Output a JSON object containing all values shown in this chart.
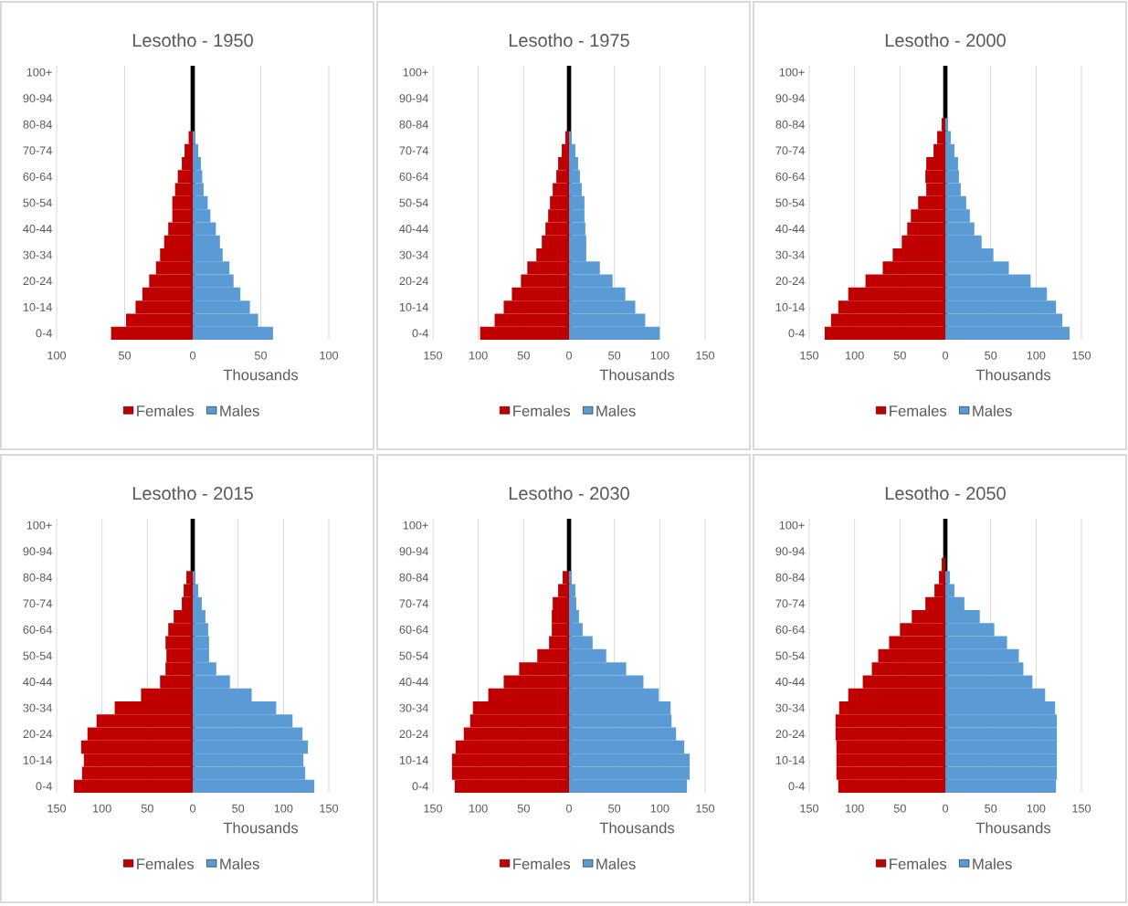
{
  "chart_data": [
    {
      "type": "bar",
      "orientation": "horizontal",
      "stacked": true,
      "title": "Lesotho - 1950",
      "xlabel": "Thousands",
      "grid": "x",
      "legend": "bottom",
      "categories": [
        "100+",
        null,
        "90-94",
        null,
        "80-84",
        null,
        "70-74",
        null,
        "60-64",
        null,
        "50-54",
        null,
        "40-44",
        null,
        "30-34",
        null,
        "20-24",
        null,
        "10-14",
        null,
        "0-4"
      ],
      "xlim": [
        -100,
        100
      ],
      "xticks": [
        {
          "value": -100,
          "label": "100"
        },
        {
          "value": -50,
          "label": "50"
        },
        0,
        50,
        100
      ],
      "ref_lines": [
        {
          "axis": "x",
          "value": 0,
          "color": "#000000"
        }
      ],
      "series": [
        {
          "name": "Females",
          "color": "#c00000",
          "values": [
            null,
            null,
            null,
            null,
            null,
            -3,
            -6,
            -8,
            -11,
            -13,
            -15,
            -15,
            -18,
            -21,
            -24,
            -27,
            -32,
            -37,
            -42,
            -49,
            -60
          ]
        },
        {
          "name": "Males",
          "color": "#5b9bd5",
          "values": [
            null,
            null,
            null,
            null,
            null,
            2,
            4,
            6,
            7,
            8,
            11,
            13,
            17,
            20,
            22,
            27,
            30,
            35,
            42,
            48,
            59
          ]
        }
      ]
    },
    {
      "type": "bar",
      "orientation": "horizontal",
      "stacked": true,
      "title": "Lesotho - 1975",
      "xlabel": "Thousands",
      "grid": "x",
      "legend": "bottom",
      "categories": [
        "100+",
        null,
        "90-94",
        null,
        "80-84",
        null,
        "70-74",
        null,
        "60-64",
        null,
        "50-54",
        null,
        "40-44",
        null,
        "30-34",
        null,
        "20-24",
        null,
        "10-14",
        null,
        "0-4"
      ],
      "xlim": [
        -150,
        150
      ],
      "xticks": [
        {
          "value": -150,
          "label": "150"
        },
        {
          "value": -100,
          "label": "100"
        },
        {
          "value": -50,
          "label": "50"
        },
        0,
        50,
        100,
        150
      ],
      "ref_lines": [
        {
          "axis": "x",
          "value": 0,
          "color": "#000000"
        }
      ],
      "series": [
        {
          "name": "Females",
          "color": "#c00000",
          "values": [
            null,
            null,
            null,
            null,
            null,
            -4,
            -8,
            -12,
            -14,
            -18,
            -21,
            -23,
            -26,
            -30,
            -36,
            -46,
            -53,
            -63,
            -72,
            -82,
            -98
          ]
        },
        {
          "name": "Males",
          "color": "#5b9bd5",
          "values": [
            null,
            null,
            null,
            null,
            null,
            3,
            7,
            10,
            12,
            14,
            17,
            17,
            18,
            19,
            19,
            34,
            48,
            62,
            73,
            84,
            100
          ]
        }
      ]
    },
    {
      "type": "bar",
      "orientation": "horizontal",
      "stacked": true,
      "title": "Lesotho - 2000",
      "xlabel": "Thousands",
      "grid": "x",
      "legend": "bottom",
      "categories": [
        "100+",
        null,
        "90-94",
        null,
        "80-84",
        null,
        "70-74",
        null,
        "60-64",
        null,
        "50-54",
        null,
        "40-44",
        null,
        "30-34",
        null,
        "20-24",
        null,
        "10-14",
        null,
        "0-4"
      ],
      "xlim": [
        -150,
        150
      ],
      "xticks": [
        {
          "value": -150,
          "label": "150"
        },
        {
          "value": -100,
          "label": "100"
        },
        {
          "value": -50,
          "label": "50"
        },
        0,
        50,
        100,
        150
      ],
      "ref_lines": [
        {
          "axis": "x",
          "value": 0,
          "color": "#000000"
        }
      ],
      "series": [
        {
          "name": "Females",
          "color": "#c00000",
          "values": [
            null,
            null,
            null,
            null,
            -4,
            -9,
            -13,
            -21,
            -22,
            -21,
            -30,
            -38,
            -42,
            -48,
            -58,
            -69,
            -88,
            -107,
            -118,
            -126,
            -133
          ]
        },
        {
          "name": "Males",
          "color": "#5b9bd5",
          "values": [
            null,
            null,
            null,
            null,
            3,
            6,
            10,
            14,
            15,
            17,
            23,
            27,
            32,
            40,
            53,
            70,
            94,
            112,
            122,
            129,
            137
          ]
        }
      ]
    },
    {
      "type": "bar",
      "orientation": "horizontal",
      "stacked": true,
      "title": "Lesotho - 2015",
      "xlabel": "Thousands",
      "grid": "x",
      "legend": "bottom",
      "categories": [
        "100+",
        null,
        "90-94",
        null,
        "80-84",
        null,
        "70-74",
        null,
        "60-64",
        null,
        "50-54",
        null,
        "40-44",
        null,
        "30-34",
        null,
        "20-24",
        null,
        "10-14",
        null,
        "0-4"
      ],
      "xlim": [
        -150,
        150
      ],
      "xticks": [
        {
          "value": -150,
          "label": "150"
        },
        {
          "value": -100,
          "label": "100"
        },
        {
          "value": -50,
          "label": "50"
        },
        0,
        50,
        100,
        150
      ],
      "ref_lines": [
        {
          "axis": "x",
          "value": 0,
          "color": "#000000"
        }
      ],
      "series": [
        {
          "name": "Females",
          "color": "#c00000",
          "values": [
            null,
            null,
            null,
            null,
            -7,
            -10,
            -12,
            -21,
            -27,
            -30,
            -29,
            -30,
            -36,
            -57,
            -86,
            -106,
            -116,
            -123,
            -120,
            -122,
            -131
          ]
        },
        {
          "name": "Males",
          "color": "#5b9bd5",
          "values": [
            null,
            null,
            null,
            null,
            3,
            6,
            10,
            14,
            17,
            18,
            18,
            26,
            41,
            65,
            92,
            110,
            121,
            127,
            122,
            124,
            134
          ]
        }
      ]
    },
    {
      "type": "bar",
      "orientation": "horizontal",
      "stacked": true,
      "title": "Lesotho - 2030",
      "xlabel": "Thousands",
      "grid": "x",
      "legend": "bottom",
      "categories": [
        "100+",
        null,
        "90-94",
        null,
        "80-84",
        null,
        "70-74",
        null,
        "60-64",
        null,
        "50-54",
        null,
        "40-44",
        null,
        "30-34",
        null,
        "20-24",
        null,
        "10-14",
        null,
        "0-4"
      ],
      "xlim": [
        -150,
        150
      ],
      "xticks": [
        {
          "value": -150,
          "label": "150"
        },
        {
          "value": -100,
          "label": "100"
        },
        {
          "value": -50,
          "label": "50"
        },
        0,
        50,
        100,
        150
      ],
      "ref_lines": [
        {
          "axis": "x",
          "value": 0,
          "color": "#000000"
        }
      ],
      "series": [
        {
          "name": "Females",
          "color": "#c00000",
          "values": [
            null,
            null,
            null,
            null,
            -7,
            -12,
            -18,
            -19,
            -19,
            -22,
            -35,
            -55,
            -72,
            -89,
            -106,
            -109,
            -116,
            -125,
            -129,
            -129,
            -126
          ]
        },
        {
          "name": "Males",
          "color": "#5b9bd5",
          "values": [
            null,
            null,
            null,
            null,
            3,
            7,
            8,
            11,
            15,
            26,
            41,
            63,
            82,
            99,
            112,
            113,
            118,
            127,
            133,
            133,
            130
          ]
        }
      ]
    },
    {
      "type": "bar",
      "orientation": "horizontal",
      "stacked": true,
      "title": "Lesotho - 2050",
      "xlabel": "Thousands",
      "grid": "x",
      "legend": "bottom",
      "categories": [
        "100+",
        null,
        "90-94",
        null,
        "80-84",
        null,
        "70-74",
        null,
        "60-64",
        null,
        "50-54",
        null,
        "40-44",
        null,
        "30-34",
        null,
        "20-24",
        null,
        "10-14",
        null,
        "0-4"
      ],
      "xlim": [
        -150,
        150
      ],
      "xticks": [
        {
          "value": -150,
          "label": "150"
        },
        {
          "value": -100,
          "label": "100"
        },
        {
          "value": -50,
          "label": "50"
        },
        0,
        50,
        100,
        150
      ],
      "ref_lines": [
        {
          "axis": "x",
          "value": 0,
          "color": "#000000"
        }
      ],
      "series": [
        {
          "name": "Females",
          "color": "#c00000",
          "values": [
            null,
            null,
            null,
            -4,
            -7,
            -12,
            -22,
            -37,
            -50,
            -62,
            -74,
            -81,
            -91,
            -107,
            -117,
            -121,
            -121,
            -120,
            -120,
            -120,
            -118
          ]
        },
        {
          "name": "Males",
          "color": "#5b9bd5",
          "values": [
            null,
            null,
            null,
            null,
            5,
            10,
            21,
            38,
            54,
            68,
            81,
            86,
            96,
            110,
            121,
            123,
            123,
            123,
            123,
            123,
            122
          ]
        }
      ]
    }
  ]
}
